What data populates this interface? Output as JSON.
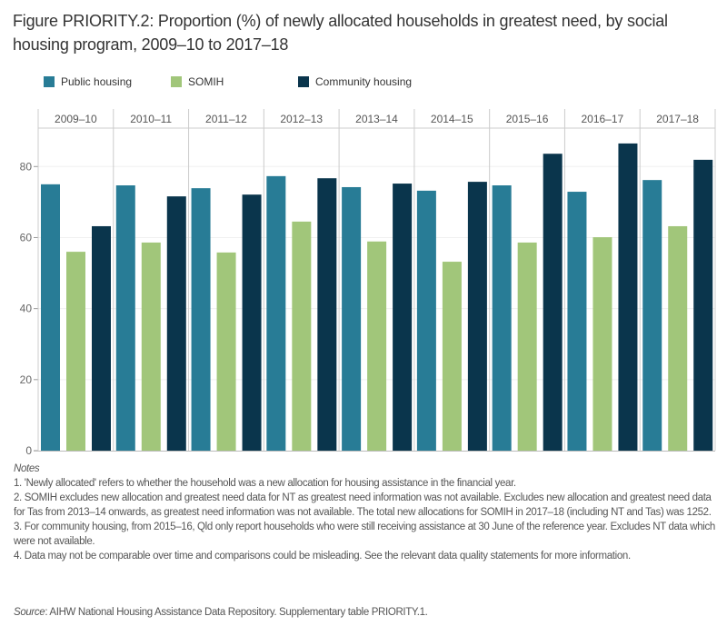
{
  "title": "Figure PRIORITY.2: Proportion (%) of newly allocated households in greatest need, by social housing program, 2009–10 to 2017–18",
  "colors": {
    "Public housing": "#287c96",
    "SOMIH": "#a1c67a",
    "Community housing": "#0a354c"
  },
  "chart_data": {
    "type": "bar",
    "categories": [
      "2009–10",
      "2010–11",
      "2011–12",
      "2012–13",
      "2013–14",
      "2014–15",
      "2015–16",
      "2016–17",
      "2017–18"
    ],
    "series": [
      {
        "name": "Public housing",
        "values": [
          75.0,
          74.7,
          73.9,
          77.3,
          74.2,
          73.2,
          74.7,
          72.9,
          76.2
        ]
      },
      {
        "name": "SOMIH",
        "values": [
          56.0,
          58.6,
          55.8,
          64.5,
          58.9,
          53.2,
          58.6,
          60.1,
          63.2
        ]
      },
      {
        "name": "Community housing",
        "values": [
          63.2,
          71.6,
          72.1,
          76.7,
          75.2,
          75.7,
          83.6,
          86.5,
          81.9
        ]
      }
    ],
    "yticks": [
      "0",
      "20",
      "40",
      "60",
      "80"
    ],
    "ylim": [
      0,
      90
    ],
    "grid": true,
    "legend": "top-left",
    "xlabel": "",
    "ylabel": ""
  },
  "notes": {
    "heading": "Notes",
    "items": [
      "1. 'Newly allocated' refers to whether the household was a new allocation for housing assistance in the financial year.",
      "2. SOMIH excludes new allocation and greatest need data for NT as greatest need information was not available. Excludes new allocation and greatest need data for Tas from 2013–14 onwards, as greatest need information was not available. The total new allocations for SOMIH in 2017–18 (including NT and Tas) was 1252.",
      "3. For community housing, from 2015–16, Qld only report households who were still receiving assistance at 30 June of the reference year. Excludes NT data which were not available.",
      "4. Data may not be comparable over time and comparisons could be misleading. See the relevant data quality statements for more information."
    ]
  },
  "source": {
    "label": "Source",
    "text": ": AIHW National Housing Assistance Data Repository. Supplementary table PRIORITY.1."
  }
}
